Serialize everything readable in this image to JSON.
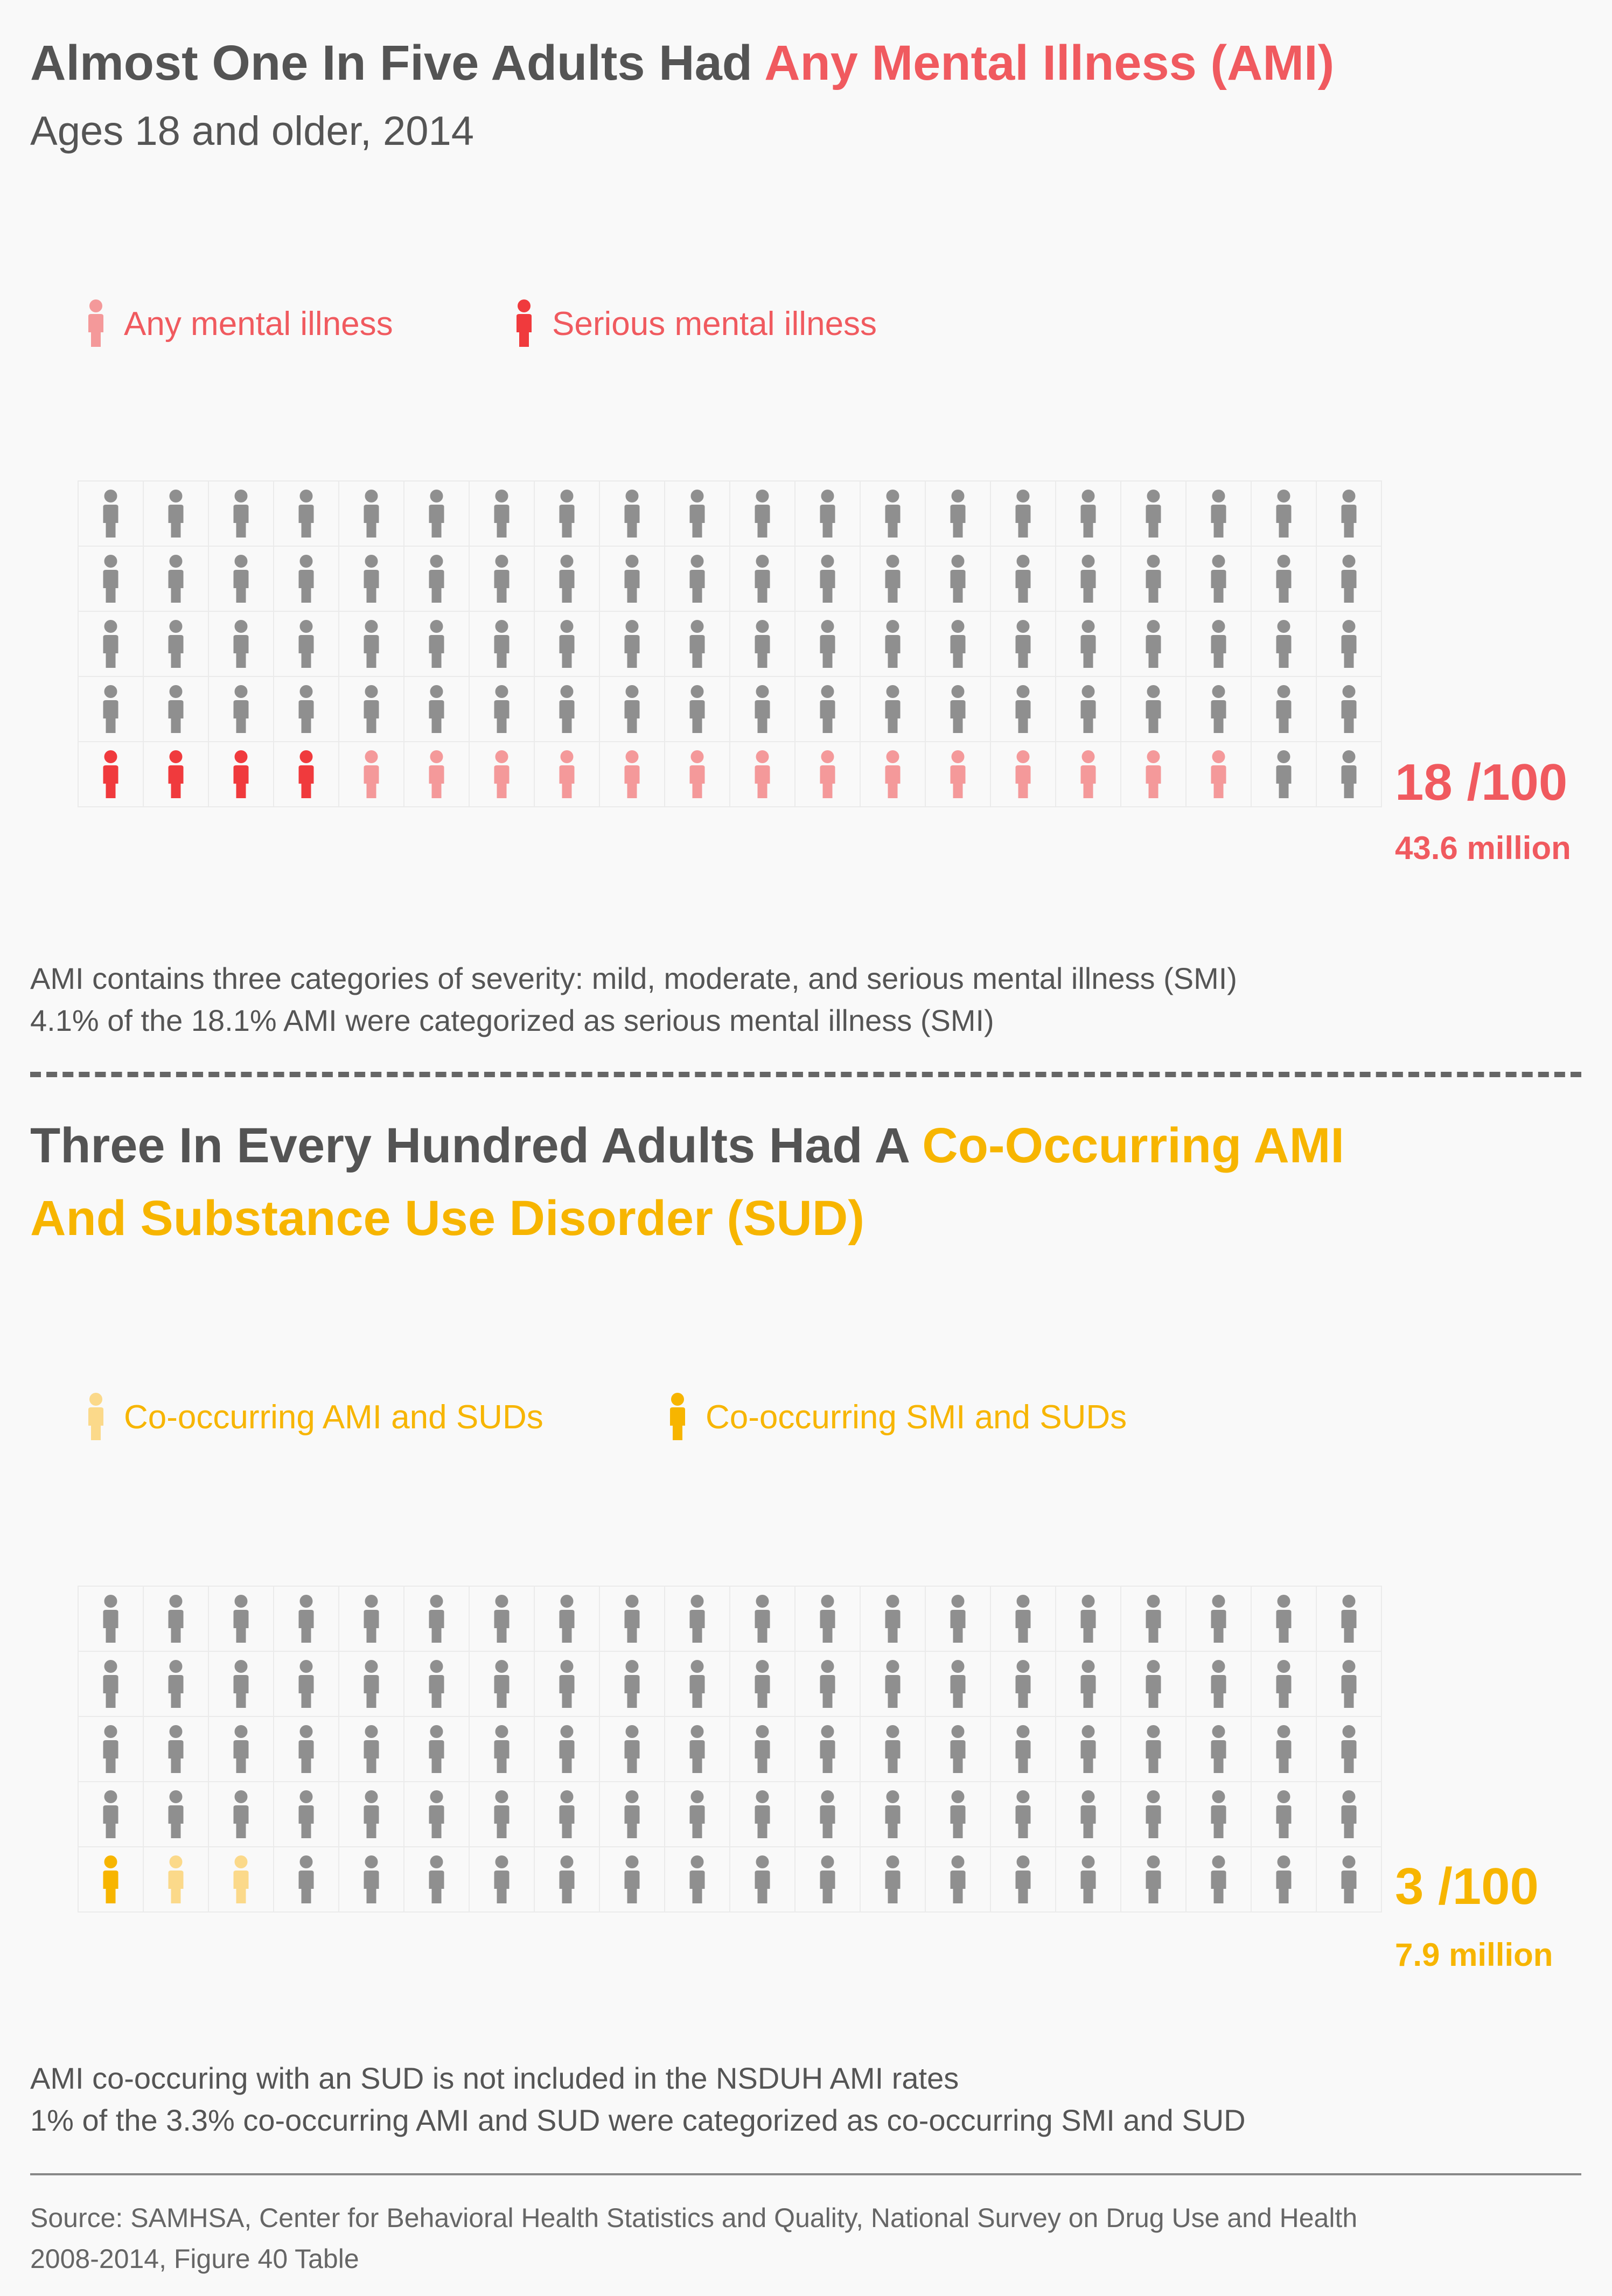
{
  "section1": {
    "title_prefix": "Almost One In Five Adults Had ",
    "title_highlight": "Any Mental Illness (AMI)",
    "subtitle": "Ages 18 and older, 2014",
    "legend": [
      {
        "label": "Any mental illness",
        "color": "#f4999a"
      },
      {
        "label": "Serious mental illness",
        "color": "#f03a3d"
      }
    ],
    "ratio": "18 /100",
    "million": "43.6 million",
    "accent_color": "#f05a5f",
    "notes": [
      "AMI contains three categories of severity: mild, moderate, and serious mental illness (SMI)",
      "4.1% of the 18.1% AMI were categorized as serious mental illness (SMI)"
    ]
  },
  "section2": {
    "title_line1_prefix": "Three In Every Hundred Adults Had A ",
    "title_line1_highlight": "Co-Occurring AMI",
    "title_line2": "And Substance Use Disorder (SUD)",
    "legend": [
      {
        "label": "Co-occurring AMI and SUDs",
        "color": "#fbd98a"
      },
      {
        "label": "Co-occurring SMI and SUDs",
        "color": "#f7b500"
      }
    ],
    "ratio": "3 /100",
    "million": "7.9 million",
    "accent_color": "#f7b500",
    "notes": [
      "AMI co-occuring with an SUD is not included in the NSDUH AMI rates",
      "1% of the 3.3% co-occurring AMI and SUD were categorized as co-occurring SMI and SUD"
    ]
  },
  "source": [
    "Source: SAMHSA, Center for Behavioral Health Statistics and Quality, National Survey on Drug Use and Health",
    "2008-2014, Figure 40 Table"
  ],
  "colors": {
    "gray_person": "#8f8f8f",
    "cell_border": "#ebebeb",
    "title_gray": "#545454"
  },
  "chart_data": [
    {
      "type": "pictogram",
      "total": 100,
      "rows": 5,
      "columns": 20,
      "categories": [
        "Serious mental illness",
        "Any mental illness"
      ],
      "values": [
        4,
        14
      ],
      "ratio": "18 /100",
      "million": "43.6 million"
    },
    {
      "type": "pictogram",
      "total": 100,
      "rows": 5,
      "columns": 20,
      "categories": [
        "Co-occurring SMI and SUDs",
        "Co-occurring AMI and SUDs"
      ],
      "values": [
        1,
        2
      ],
      "ratio": "3 /100",
      "million": "7.9 million"
    }
  ]
}
